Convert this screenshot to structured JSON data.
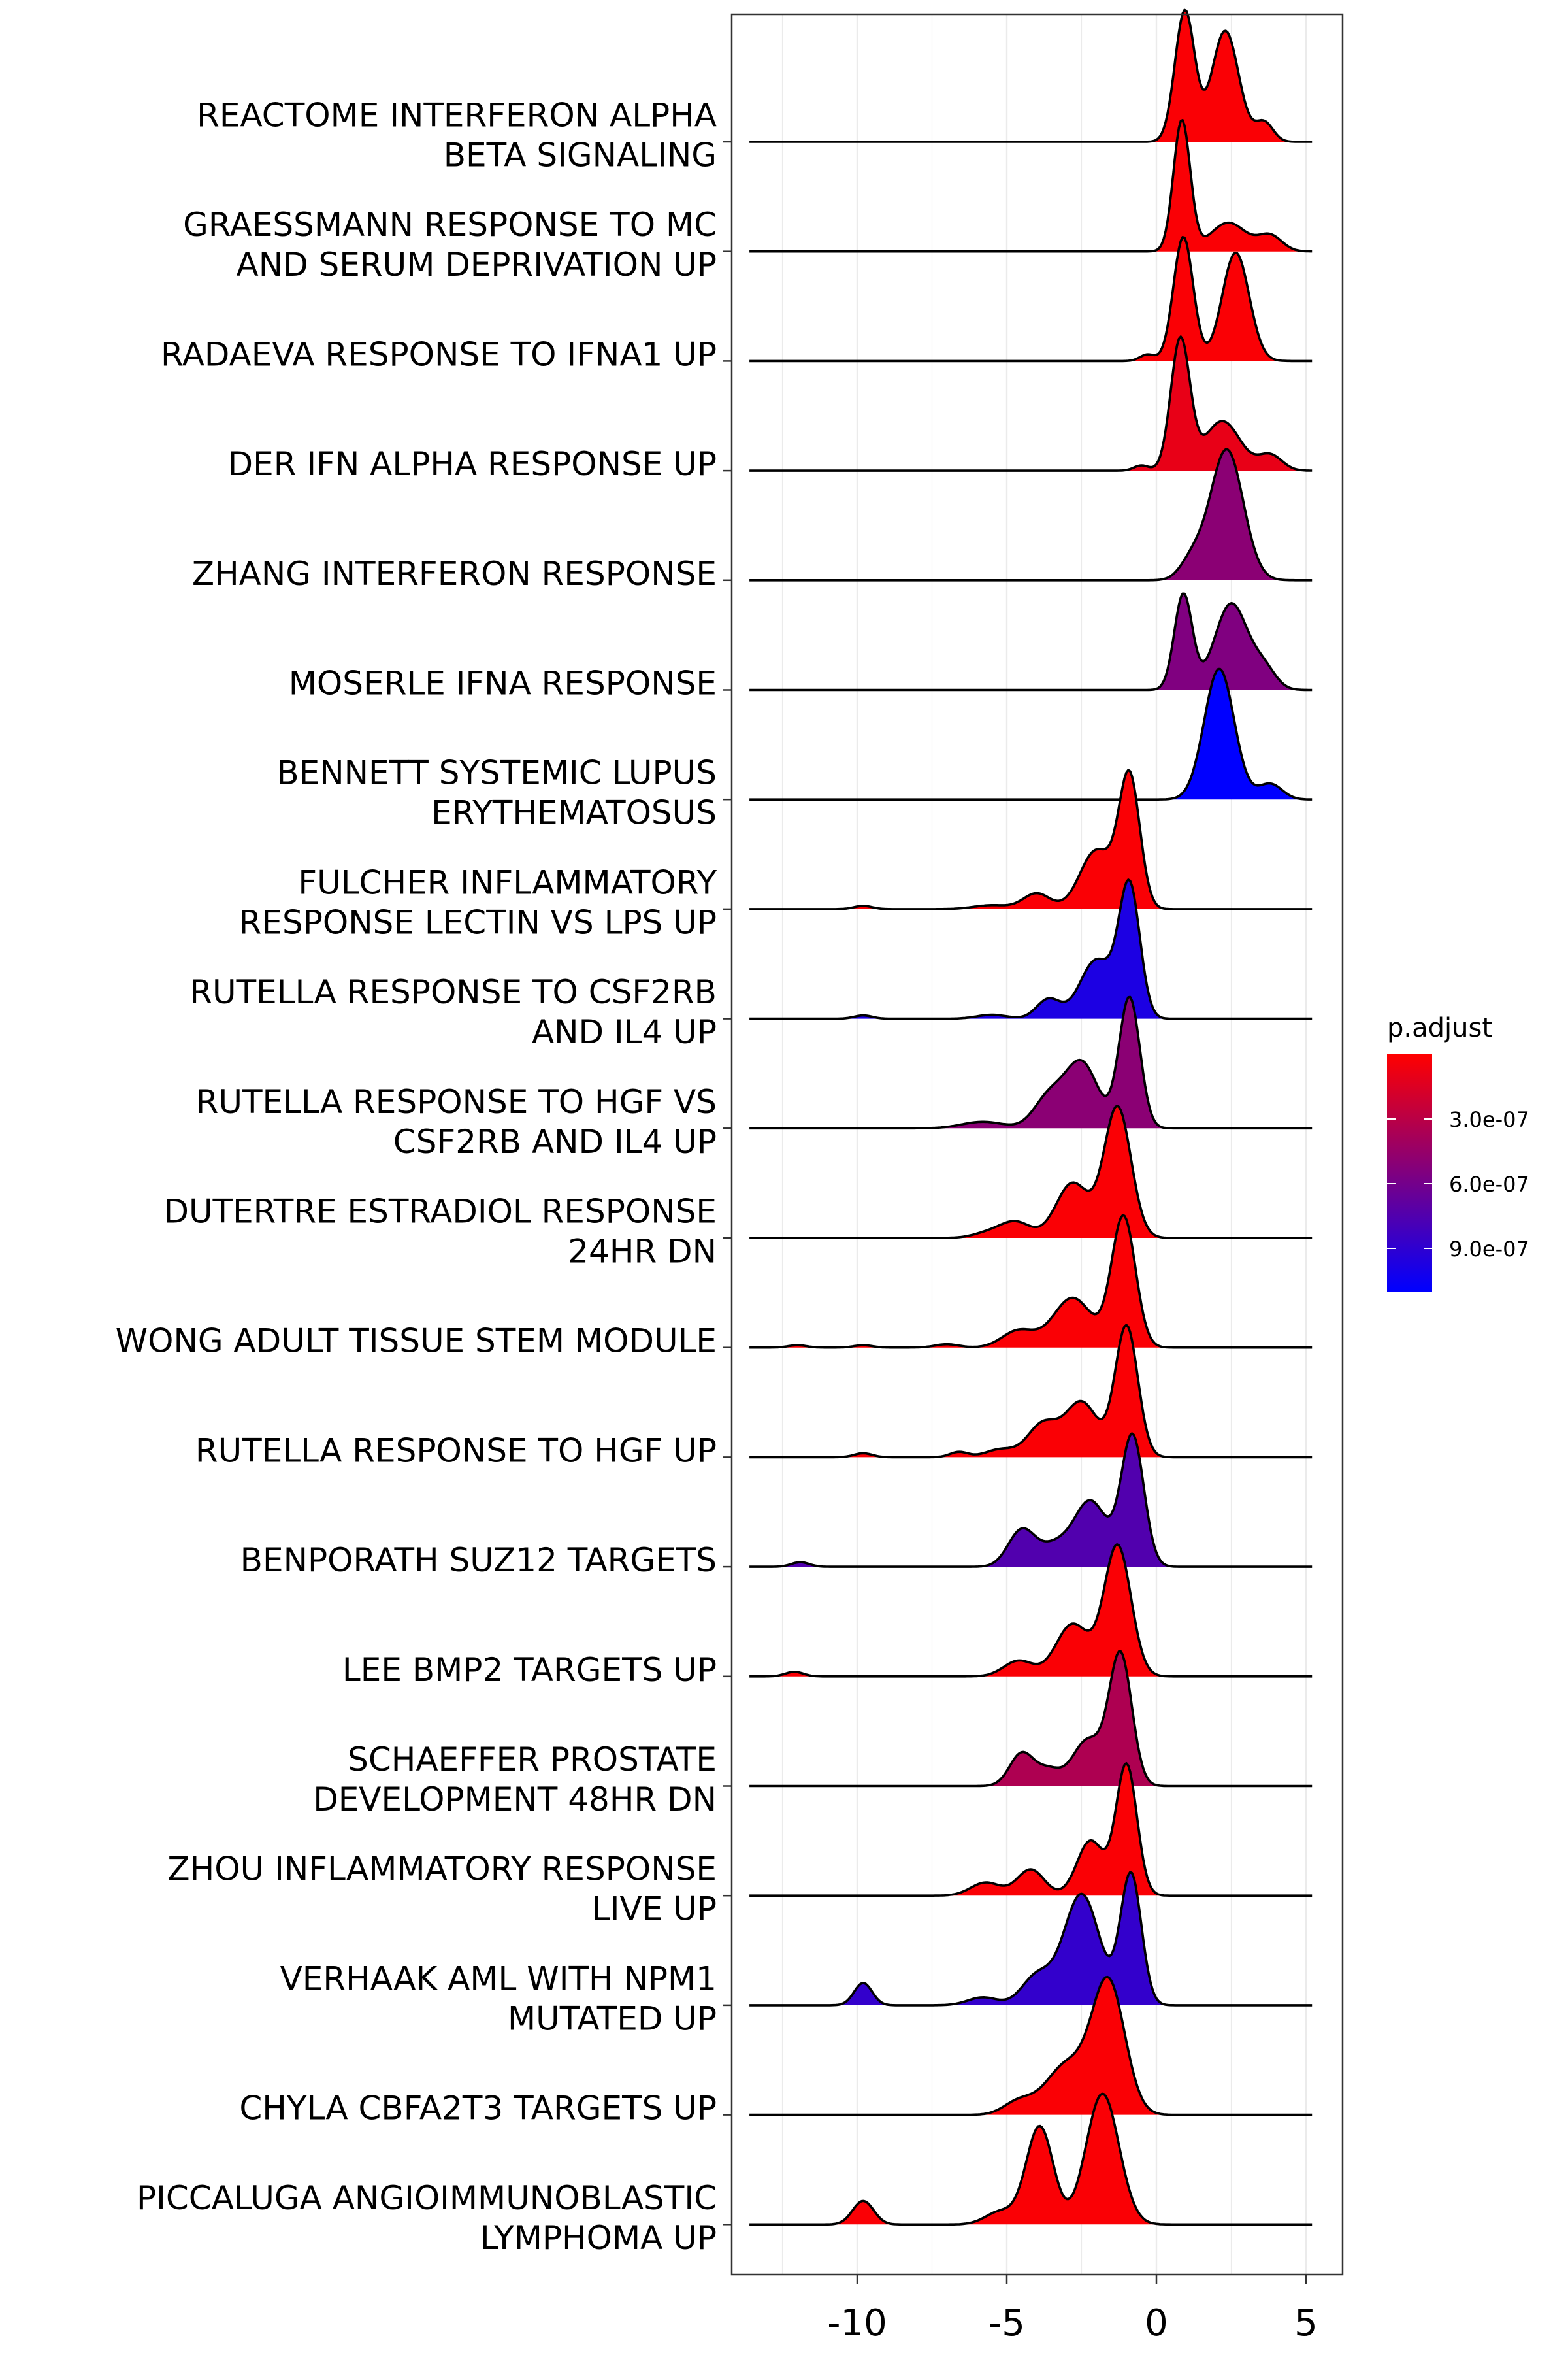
{
  "chart_data": {
    "type": "ridgeline",
    "title": "",
    "xlabel": "",
    "ylabel": "",
    "xlim": [
      -14.2,
      6.0
    ],
    "x_ticks": [
      -10,
      -5,
      0,
      5
    ],
    "x_tick_labels": [
      "-10",
      "-5",
      "0",
      "5"
    ],
    "grid": true,
    "legend": {
      "title": "p.adjust",
      "position": "right",
      "range": [
        0,
        1.1e-06
      ],
      "ticks": [
        3e-07,
        6e-07,
        9e-07
      ],
      "tick_labels": [
        "3.0e-07",
        "6.0e-07",
        "9.0e-07"
      ],
      "color_low": "#FF0000",
      "color_high": "#0000FF"
    },
    "series": [
      {
        "label": [
          "REACTOME INTERFERON ALPHA",
          "BETA SIGNALING"
        ],
        "p_adjust": 2e-08,
        "peaks": [
          [
            0.95,
            1.0,
            0.33
          ],
          [
            2.3,
            0.85,
            0.45
          ],
          [
            3.6,
            0.15,
            0.3
          ]
        ]
      },
      {
        "label": [
          "GRAESSMANN RESPONSE TO MC",
          "AND SERUM DEPRIVATION UP"
        ],
        "p_adjust": 2e-08,
        "peaks": [
          [
            0.85,
            1.0,
            0.28
          ],
          [
            2.4,
            0.22,
            0.6
          ],
          [
            3.8,
            0.12,
            0.4
          ]
        ]
      },
      {
        "label": [
          "RADAEVA RESPONSE TO IFNA1 UP"
        ],
        "p_adjust": 2e-08,
        "peaks": [
          [
            0.9,
            0.95,
            0.33
          ],
          [
            2.65,
            0.83,
            0.45
          ],
          [
            -0.3,
            0.05,
            0.25
          ]
        ]
      },
      {
        "label": [
          "DER IFN ALPHA RESPONSE UP"
        ],
        "p_adjust": 1e-07,
        "peaks": [
          [
            0.8,
            1.0,
            0.32
          ],
          [
            2.2,
            0.38,
            0.6
          ],
          [
            3.8,
            0.12,
            0.4
          ],
          [
            -0.5,
            0.04,
            0.25
          ]
        ]
      },
      {
        "label": [
          "ZHANG INTERFERON RESPONSE"
        ],
        "p_adjust": 5e-07,
        "peaks": [
          [
            2.35,
            1.0,
            0.55
          ],
          [
            1.2,
            0.15,
            0.4
          ]
        ]
      },
      {
        "label": [
          "MOSERLE IFNA RESPONSE"
        ],
        "p_adjust": 5.5e-07,
        "peaks": [
          [
            0.9,
            0.73,
            0.3
          ],
          [
            2.5,
            0.66,
            0.55
          ],
          [
            3.6,
            0.15,
            0.4
          ]
        ]
      },
      {
        "label": [
          "BENNETT SYSTEMIC LUPUS",
          "ERYTHEMATOSUS"
        ],
        "p_adjust": 1.1e-06,
        "peaks": [
          [
            2.1,
            1.0,
            0.5
          ],
          [
            3.8,
            0.12,
            0.4
          ]
        ]
      },
      {
        "label": [
          "FULCHER INFLAMMATORY",
          "RESPONSE LECTIN VS LPS UP"
        ],
        "p_adjust": 2e-08,
        "peaks": [
          [
            -0.9,
            1.0,
            0.35
          ],
          [
            -2.0,
            0.45,
            0.55
          ],
          [
            -4.0,
            0.12,
            0.45
          ],
          [
            -5.5,
            0.03,
            0.6
          ],
          [
            -9.8,
            0.025,
            0.3
          ]
        ]
      },
      {
        "label": [
          "RUTELLA RESPONSE TO CSF2RB",
          "AND IL4 UP"
        ],
        "p_adjust": 9.8e-07,
        "peaks": [
          [
            -0.9,
            1.0,
            0.35
          ],
          [
            -2.0,
            0.45,
            0.55
          ],
          [
            -3.6,
            0.15,
            0.4
          ],
          [
            -5.5,
            0.03,
            0.5
          ],
          [
            -9.8,
            0.025,
            0.3
          ]
        ]
      },
      {
        "label": [
          "RUTELLA RESPONSE TO HGF VS",
          "CSF2RB AND IL4 UP"
        ],
        "p_adjust": 5e-07,
        "peaks": [
          [
            -0.9,
            1.0,
            0.35
          ],
          [
            -2.5,
            0.5,
            0.55
          ],
          [
            -3.6,
            0.23,
            0.5
          ],
          [
            -5.8,
            0.05,
            0.7
          ]
        ]
      },
      {
        "label": [
          "DUTERTRE ESTRADIOL RESPONSE",
          "24HR DN"
        ],
        "p_adjust": 2e-08,
        "peaks": [
          [
            -1.3,
            1.0,
            0.45
          ],
          [
            -2.8,
            0.42,
            0.55
          ],
          [
            -4.7,
            0.12,
            0.5
          ],
          [
            -5.6,
            0.04,
            0.5
          ]
        ]
      },
      {
        "label": [
          "WONG ADULT TISSUE STEM MODULE"
        ],
        "p_adjust": 2e-08,
        "peaks": [
          [
            -1.1,
            1.0,
            0.4
          ],
          [
            -2.8,
            0.38,
            0.65
          ],
          [
            -4.6,
            0.13,
            0.55
          ],
          [
            -7.0,
            0.025,
            0.4
          ],
          [
            -9.8,
            0.018,
            0.3
          ],
          [
            -12.0,
            0.018,
            0.3
          ]
        ]
      },
      {
        "label": [
          "RUTELLA RESPONSE TO HGF UP"
        ],
        "p_adjust": 2e-08,
        "peaks": [
          [
            -1.0,
            1.0,
            0.38
          ],
          [
            -2.5,
            0.42,
            0.55
          ],
          [
            -3.8,
            0.25,
            0.5
          ],
          [
            -5.2,
            0.06,
            0.5
          ],
          [
            -6.6,
            0.04,
            0.3
          ],
          [
            -9.8,
            0.03,
            0.3
          ]
        ]
      },
      {
        "label": [
          "BENPORATH SUZ12 TARGETS"
        ],
        "p_adjust": 7.5e-07,
        "peaks": [
          [
            -0.8,
            1.0,
            0.38
          ],
          [
            -2.2,
            0.5,
            0.55
          ],
          [
            -4.5,
            0.28,
            0.45
          ],
          [
            -3.4,
            0.15,
            0.5
          ],
          [
            -11.9,
            0.035,
            0.3
          ]
        ]
      },
      {
        "label": [
          "LEE BMP2 TARGETS UP"
        ],
        "p_adjust": 2e-08,
        "peaks": [
          [
            -1.3,
            1.0,
            0.45
          ],
          [
            -2.8,
            0.4,
            0.55
          ],
          [
            -4.6,
            0.12,
            0.5
          ],
          [
            -12.1,
            0.035,
            0.3
          ]
        ]
      },
      {
        "label": [
          "SCHAEFFER PROSTATE",
          "DEVELOPMENT 48HR DN"
        ],
        "p_adjust": 3.5e-07,
        "peaks": [
          [
            -1.2,
            1.0,
            0.38
          ],
          [
            -2.3,
            0.35,
            0.5
          ],
          [
            -4.5,
            0.25,
            0.4
          ],
          [
            -3.6,
            0.12,
            0.4
          ]
        ]
      },
      {
        "label": [
          "ZHOU INFLAMMATORY RESPONSE",
          "LIVE UP"
        ],
        "p_adjust": 2e-08,
        "peaks": [
          [
            -1.0,
            1.0,
            0.35
          ],
          [
            -2.2,
            0.42,
            0.45
          ],
          [
            -4.2,
            0.2,
            0.45
          ],
          [
            -5.7,
            0.1,
            0.5
          ]
        ]
      },
      {
        "label": [
          "VERHAAK AML WITH NPM1",
          "MUTATED UP"
        ],
        "p_adjust": 8.8e-07,
        "peaks": [
          [
            -0.85,
            1.0,
            0.35
          ],
          [
            -2.5,
            0.85,
            0.6
          ],
          [
            -4.0,
            0.22,
            0.5
          ],
          [
            -5.8,
            0.06,
            0.5
          ],
          [
            -9.8,
            0.17,
            0.3
          ]
        ]
      },
      {
        "label": [
          "CHYLA CBFA2T3 TARGETS UP"
        ],
        "p_adjust": 2e-08,
        "peaks": [
          [
            -1.6,
            1.0,
            0.55
          ],
          [
            -3.0,
            0.38,
            0.7
          ],
          [
            -4.6,
            0.1,
            0.5
          ]
        ]
      },
      {
        "label": [
          "PICCALUGA ANGIOIMMUNOBLASTIC",
          "LYMPHOMA UP"
        ],
        "p_adjust": 2e-08,
        "peaks": [
          [
            -1.8,
            1.0,
            0.55
          ],
          [
            -3.9,
            0.75,
            0.45
          ],
          [
            -5.2,
            0.1,
            0.5
          ],
          [
            -9.8,
            0.18,
            0.35
          ]
        ]
      }
    ]
  }
}
